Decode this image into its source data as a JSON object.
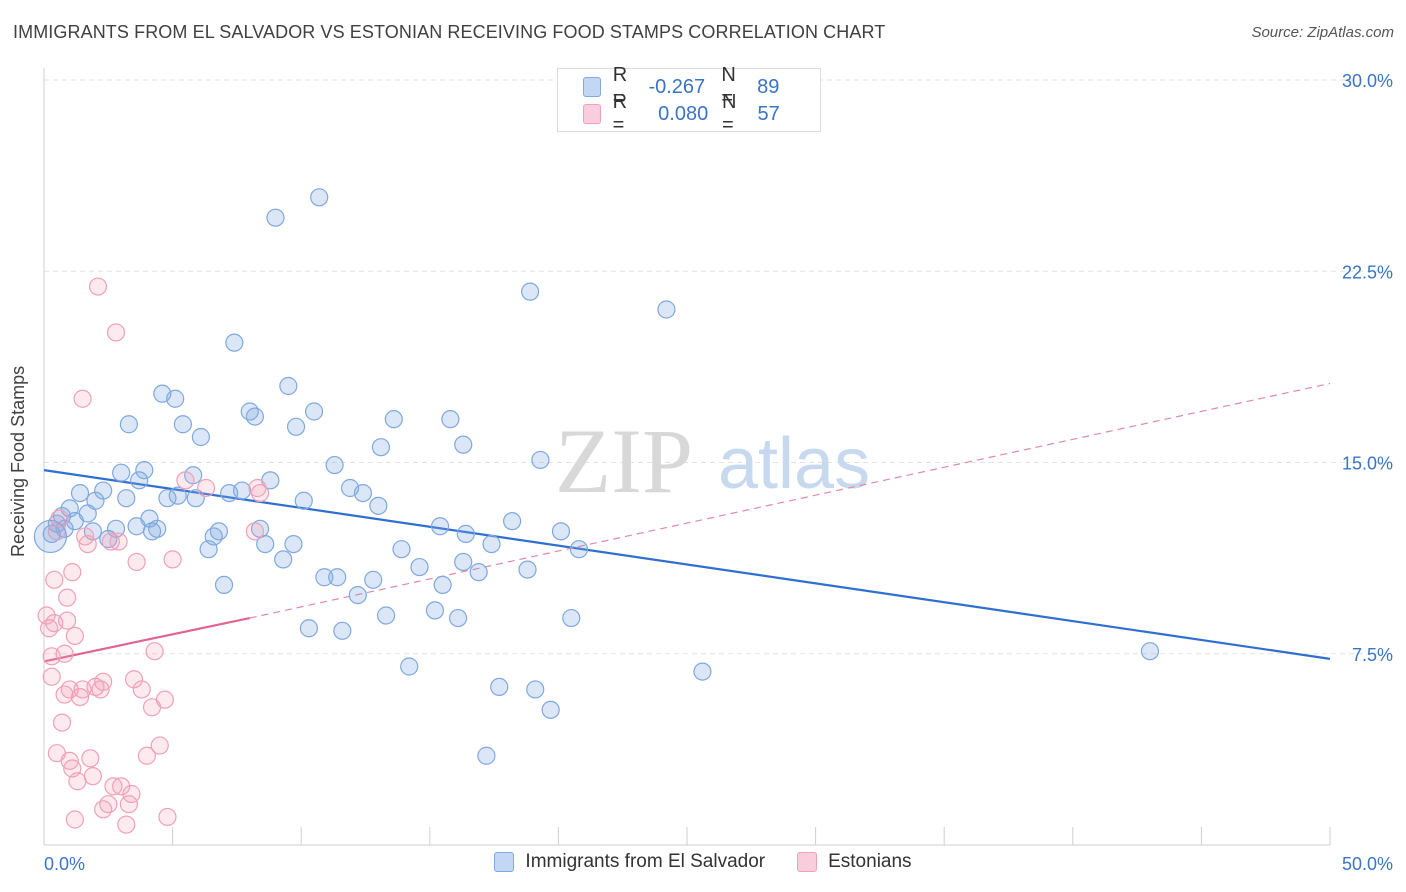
{
  "title": "IMMIGRANTS FROM EL SALVADOR VS ESTONIAN RECEIVING FOOD STAMPS CORRELATION CHART",
  "source": "Source: ZipAtlas.com",
  "watermark": {
    "zip": "ZIP",
    "atlas": "atlas"
  },
  "legend": {
    "r_label": "R =",
    "n_label": "N =",
    "rows": [
      {
        "r": "-0.267",
        "n": "89",
        "color": "#7fa8e0"
      },
      {
        "r": "0.080",
        "n": "57",
        "color": "#f0a0b8"
      }
    ]
  },
  "series_labels": {
    "blue": "Immigrants from El Salvador",
    "pink": "Estonians"
  },
  "chart_data": {
    "type": "scatter",
    "title": "IMMIGRANTS FROM EL SALVADOR VS ESTONIAN RECEIVING FOOD STAMPS CORRELATION CHART",
    "xlabel": "",
    "ylabel": "Receiving Food Stamps",
    "xlim": [
      0,
      50
    ],
    "ylim": [
      0,
      30
    ],
    "x_tick_labels": [
      "0.0%",
      "50.0%"
    ],
    "y_ticks": [
      7.5,
      15.0,
      22.5,
      30.0
    ],
    "y_tick_labels": [
      "7.5%",
      "15.0%",
      "22.5%",
      "30.0%"
    ],
    "grid": true,
    "legend_position": "top-center",
    "series": [
      {
        "name": "Immigrants from El Salvador",
        "color": "#7fa8e0",
        "r": -0.267,
        "n": 89,
        "trend": {
          "x": [
            0,
            50
          ],
          "y": [
            14.7,
            7.3
          ],
          "style": "solid"
        },
        "points": [
          [
            0.3,
            12.2
          ],
          [
            0.5,
            12.6
          ],
          [
            0.7,
            12.9
          ],
          [
            0.8,
            12.4
          ],
          [
            1.0,
            13.2
          ],
          [
            1.2,
            12.7
          ],
          [
            1.4,
            13.8
          ],
          [
            1.7,
            13.0
          ],
          [
            1.9,
            12.3
          ],
          [
            2.0,
            13.5
          ],
          [
            2.3,
            13.9
          ],
          [
            2.5,
            12.0
          ],
          [
            2.8,
            12.4
          ],
          [
            3.0,
            14.6
          ],
          [
            3.2,
            13.6
          ],
          [
            3.3,
            16.5
          ],
          [
            3.6,
            12.5
          ],
          [
            3.7,
            14.3
          ],
          [
            3.9,
            14.7
          ],
          [
            4.1,
            12.8
          ],
          [
            4.2,
            12.3
          ],
          [
            4.4,
            12.4
          ],
          [
            4.6,
            17.7
          ],
          [
            4.8,
            13.6
          ],
          [
            5.1,
            17.5
          ],
          [
            5.2,
            13.7
          ],
          [
            5.4,
            16.5
          ],
          [
            5.8,
            14.5
          ],
          [
            5.9,
            13.6
          ],
          [
            6.1,
            16.0
          ],
          [
            6.4,
            11.6
          ],
          [
            6.6,
            12.1
          ],
          [
            6.8,
            12.3
          ],
          [
            7.0,
            10.2
          ],
          [
            7.2,
            13.8
          ],
          [
            7.4,
            19.7
          ],
          [
            7.7,
            13.9
          ],
          [
            8.0,
            17.0
          ],
          [
            8.2,
            16.8
          ],
          [
            8.4,
            12.4
          ],
          [
            8.6,
            11.8
          ],
          [
            8.8,
            14.3
          ],
          [
            9.0,
            24.6
          ],
          [
            9.3,
            11.2
          ],
          [
            9.5,
            18.0
          ],
          [
            9.7,
            11.8
          ],
          [
            9.8,
            16.4
          ],
          [
            10.1,
            13.5
          ],
          [
            10.3,
            8.5
          ],
          [
            10.5,
            17.0
          ],
          [
            10.7,
            25.4
          ],
          [
            10.9,
            10.5
          ],
          [
            11.3,
            14.9
          ],
          [
            11.4,
            10.5
          ],
          [
            11.6,
            8.4
          ],
          [
            11.9,
            14.0
          ],
          [
            12.2,
            9.8
          ],
          [
            12.4,
            13.8
          ],
          [
            12.8,
            10.4
          ],
          [
            13.0,
            13.3
          ],
          [
            13.1,
            15.6
          ],
          [
            13.3,
            9.0
          ],
          [
            13.6,
            16.7
          ],
          [
            13.9,
            11.6
          ],
          [
            14.2,
            7.0
          ],
          [
            14.6,
            10.9
          ],
          [
            15.2,
            9.2
          ],
          [
            15.4,
            12.5
          ],
          [
            15.5,
            10.2
          ],
          [
            15.8,
            16.7
          ],
          [
            16.1,
            8.9
          ],
          [
            16.3,
            11.1
          ],
          [
            16.3,
            15.7
          ],
          [
            16.4,
            12.2
          ],
          [
            16.9,
            10.7
          ],
          [
            17.2,
            3.5
          ],
          [
            17.4,
            11.8
          ],
          [
            17.7,
            6.2
          ],
          [
            18.2,
            12.7
          ],
          [
            18.8,
            10.8
          ],
          [
            18.9,
            21.7
          ],
          [
            19.1,
            6.1
          ],
          [
            19.3,
            15.1
          ],
          [
            19.7,
            5.3
          ],
          [
            20.1,
            12.3
          ],
          [
            20.5,
            8.9
          ],
          [
            20.8,
            11.6
          ],
          [
            24.2,
            21.0
          ],
          [
            25.6,
            6.8
          ],
          [
            43.0,
            7.6
          ]
        ]
      },
      {
        "name": "Estonians",
        "color": "#f0a0b8",
        "r": 0.08,
        "n": 57,
        "trend": {
          "x": [
            0,
            8.0
          ],
          "y": [
            7.2,
            8.9
          ],
          "style": "solid"
        },
        "trend_extension": {
          "x": [
            8.0,
            50
          ],
          "y": [
            8.9,
            18.1
          ],
          "style": "dashed"
        },
        "points": [
          [
            0.1,
            9.0
          ],
          [
            0.2,
            8.5
          ],
          [
            0.3,
            6.6
          ],
          [
            0.3,
            7.4
          ],
          [
            0.4,
            8.7
          ],
          [
            0.4,
            10.4
          ],
          [
            0.5,
            12.3
          ],
          [
            0.5,
            3.6
          ],
          [
            0.6,
            12.8
          ],
          [
            0.7,
            4.8
          ],
          [
            0.8,
            5.9
          ],
          [
            0.8,
            7.5
          ],
          [
            0.9,
            9.7
          ],
          [
            0.9,
            8.8
          ],
          [
            1.0,
            3.3
          ],
          [
            1.0,
            6.1
          ],
          [
            1.1,
            10.7
          ],
          [
            1.1,
            3.0
          ],
          [
            1.2,
            8.2
          ],
          [
            1.2,
            1.0
          ],
          [
            1.3,
            2.5
          ],
          [
            1.4,
            5.8
          ],
          [
            1.5,
            6.1
          ],
          [
            1.5,
            17.5
          ],
          [
            1.6,
            12.1
          ],
          [
            1.7,
            11.8
          ],
          [
            1.8,
            3.4
          ],
          [
            1.9,
            2.7
          ],
          [
            2.0,
            6.2
          ],
          [
            2.1,
            21.9
          ],
          [
            2.2,
            6.1
          ],
          [
            2.3,
            6.4
          ],
          [
            2.3,
            1.4
          ],
          [
            2.5,
            1.6
          ],
          [
            2.6,
            11.9
          ],
          [
            2.7,
            2.3
          ],
          [
            2.8,
            20.1
          ],
          [
            2.9,
            11.9
          ],
          [
            3.0,
            2.3
          ],
          [
            3.2,
            0.8
          ],
          [
            3.3,
            1.6
          ],
          [
            3.4,
            2.0
          ],
          [
            3.5,
            6.5
          ],
          [
            3.6,
            11.1
          ],
          [
            3.8,
            6.1
          ],
          [
            4.0,
            3.5
          ],
          [
            4.2,
            5.4
          ],
          [
            4.3,
            7.6
          ],
          [
            4.5,
            3.9
          ],
          [
            4.7,
            5.7
          ],
          [
            4.8,
            1.1
          ],
          [
            5.0,
            11.2
          ],
          [
            5.5,
            14.3
          ],
          [
            6.3,
            14.0
          ],
          [
            8.2,
            12.3
          ],
          [
            8.3,
            14.0
          ],
          [
            8.4,
            13.8
          ]
        ]
      }
    ]
  }
}
